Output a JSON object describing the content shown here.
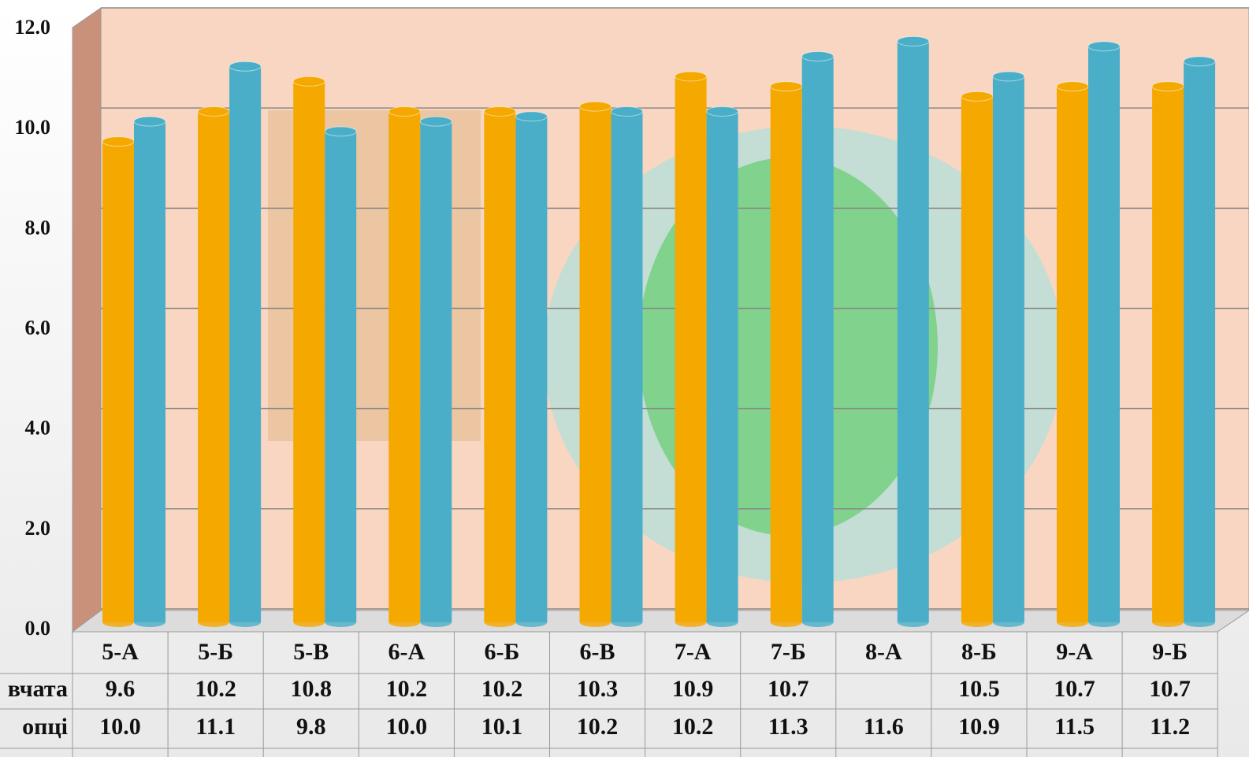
{
  "chart_data": {
    "type": "bar",
    "categories": [
      "5-А",
      "5-Б",
      "5-В",
      "6-А",
      "6-Б",
      "6-В",
      "7-А",
      "7-Б",
      "8-А",
      "8-Б",
      "9-А",
      "9-Б"
    ],
    "series": [
      {
        "name": "вчата",
        "color": "#f5a800",
        "values": [
          9.6,
          10.2,
          10.8,
          10.2,
          10.2,
          10.3,
          10.9,
          10.7,
          null,
          10.5,
          10.7,
          10.7
        ],
        "value_labels": [
          "9.6",
          "10.2",
          "10.8",
          "10.2",
          "10.2",
          "10.3",
          "10.9",
          "10.7",
          null,
          "10.5",
          "10.7",
          "10.7"
        ]
      },
      {
        "name": "опці",
        "color": "#4aaec9",
        "values": [
          10.0,
          11.1,
          9.8,
          10.0,
          10.1,
          10.2,
          10.2,
          11.3,
          11.6,
          10.9,
          11.5,
          11.2
        ],
        "value_labels": [
          "10.0",
          "11.1",
          "9.8",
          "10.0",
          "10.1",
          "10.2",
          "10.2",
          "11.3",
          "11.6",
          "10.9",
          "11.5",
          "11.2"
        ]
      }
    ],
    "ylim": [
      0,
      12
    ],
    "yticks": [
      {
        "value": 0,
        "label": "0.0"
      },
      {
        "value": 2,
        "label": "2.0"
      },
      {
        "value": 4,
        "label": "4.0"
      },
      {
        "value": 6,
        "label": "6.0"
      },
      {
        "value": 8,
        "label": "8.0"
      },
      {
        "value": 10,
        "label": "10.0"
      },
      {
        "value": 12,
        "label": "12.0"
      }
    ],
    "grid": true
  }
}
